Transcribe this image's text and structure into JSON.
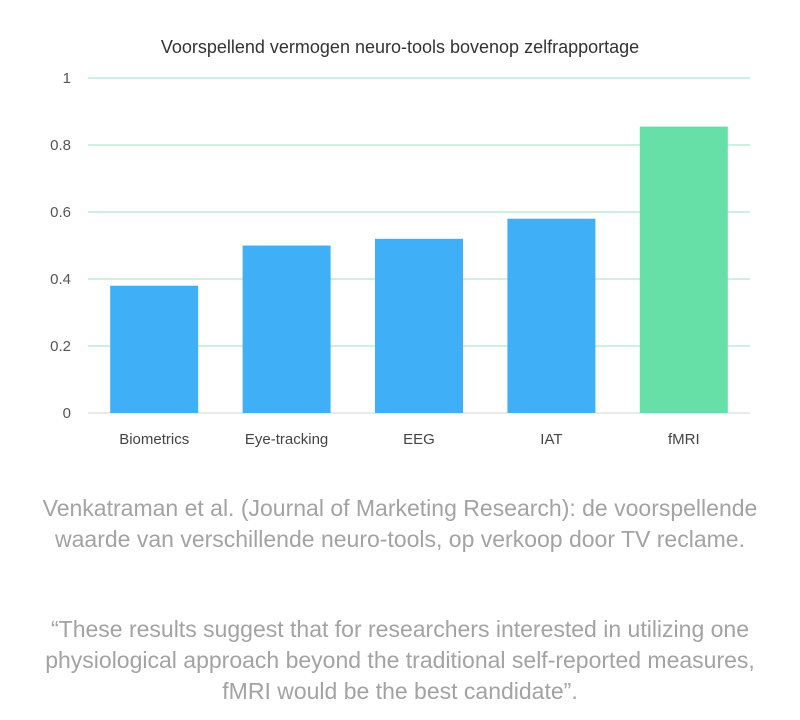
{
  "chart_data": {
    "type": "bar",
    "title": "Voorspellend vermogen neuro-tools bovenop zelfrapportage",
    "categories": [
      "Biometrics",
      "Eye-tracking",
      "EEG",
      "IAT",
      "fMRI"
    ],
    "values": [
      0.38,
      0.5,
      0.52,
      0.58,
      0.855
    ],
    "ylim": [
      0,
      1
    ],
    "yticks": [
      "0",
      "0.2",
      "0.4",
      "0.6",
      "0.8",
      "1"
    ],
    "ytick_values": [
      0,
      0.2,
      0.4,
      0.6,
      0.8,
      1
    ],
    "xlabel": "",
    "ylabel": "",
    "grid": true,
    "colors": {
      "default_bar": "#3fb0f7",
      "highlight_bar": "#66e0a6",
      "grid": "#9ee2bf",
      "highlight_index": 4
    }
  },
  "caption": {
    "source": "Venkatraman et al. (Journal of Marketing Research): de voorspellende waarde van verschillende neuro-tools, op verkoop door TV reclame.",
    "quote": "“These results suggest that for researchers interested in utilizing one physiological approach beyond the traditional self-reported measures, fMRI would be the best candidate”."
  }
}
